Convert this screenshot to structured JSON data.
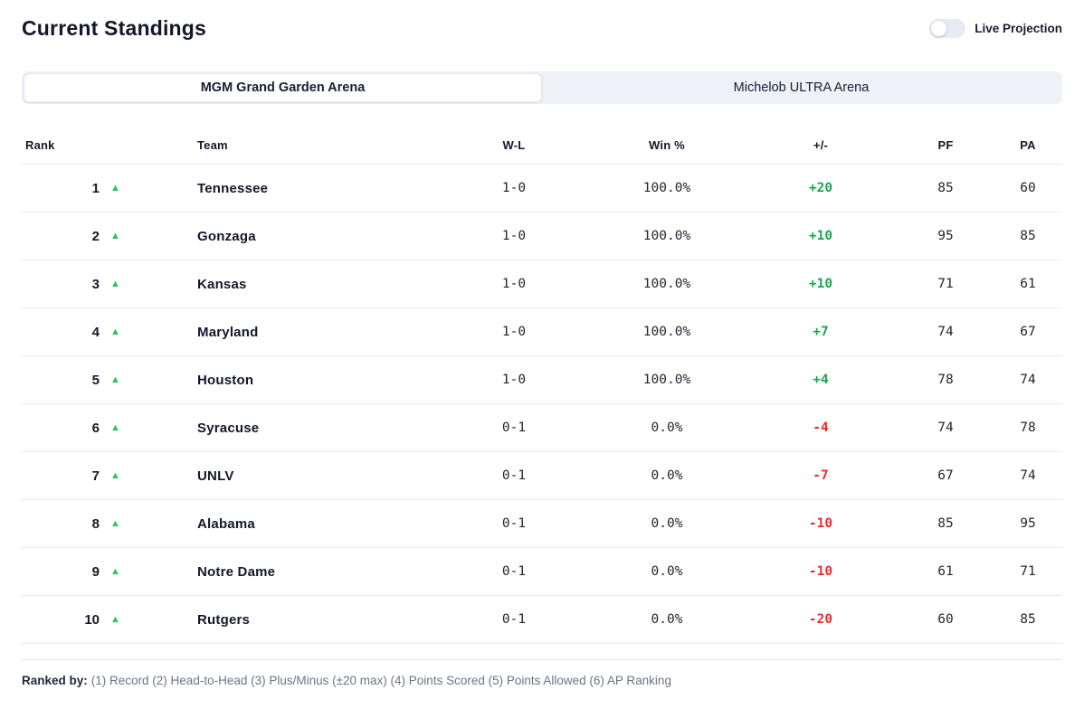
{
  "page": {
    "title": "Current Standings"
  },
  "toggle": {
    "label": "Live Projection",
    "state": "off"
  },
  "tabs": [
    {
      "label": "MGM Grand Garden Arena",
      "active": true
    },
    {
      "label": "Michelob ULTRA Arena",
      "active": false
    }
  ],
  "table": {
    "columns": [
      "Rank",
      "Team",
      "W-L",
      "Win %",
      "+/-",
      "PF",
      "PA"
    ],
    "rows": [
      {
        "rank": "1",
        "trend": "up",
        "team": "Tennessee",
        "record": "1-0",
        "win_pct": "100.0%",
        "plus_minus": "+20",
        "pf": "85",
        "pa": "60"
      },
      {
        "rank": "2",
        "trend": "up",
        "team": "Gonzaga",
        "record": "1-0",
        "win_pct": "100.0%",
        "plus_minus": "+10",
        "pf": "95",
        "pa": "85"
      },
      {
        "rank": "3",
        "trend": "up",
        "team": "Kansas",
        "record": "1-0",
        "win_pct": "100.0%",
        "plus_minus": "+10",
        "pf": "71",
        "pa": "61"
      },
      {
        "rank": "4",
        "trend": "up",
        "team": "Maryland",
        "record": "1-0",
        "win_pct": "100.0%",
        "plus_minus": "+7",
        "pf": "74",
        "pa": "67"
      },
      {
        "rank": "5",
        "trend": "up",
        "team": "Houston",
        "record": "1-0",
        "win_pct": "100.0%",
        "plus_minus": "+4",
        "pf": "78",
        "pa": "74"
      },
      {
        "rank": "6",
        "trend": "up",
        "team": "Syracuse",
        "record": "0-1",
        "win_pct": "0.0%",
        "plus_minus": "-4",
        "pf": "74",
        "pa": "78"
      },
      {
        "rank": "7",
        "trend": "up",
        "team": "UNLV",
        "record": "0-1",
        "win_pct": "0.0%",
        "plus_minus": "-7",
        "pf": "67",
        "pa": "74"
      },
      {
        "rank": "8",
        "trend": "up",
        "team": "Alabama",
        "record": "0-1",
        "win_pct": "0.0%",
        "plus_minus": "-10",
        "pf": "85",
        "pa": "95"
      },
      {
        "rank": "9",
        "trend": "up",
        "team": "Notre Dame",
        "record": "0-1",
        "win_pct": "0.0%",
        "plus_minus": "-10",
        "pf": "61",
        "pa": "71"
      },
      {
        "rank": "10",
        "trend": "up",
        "team": "Rutgers",
        "record": "0-1",
        "win_pct": "0.0%",
        "plus_minus": "-20",
        "pf": "60",
        "pa": "85"
      }
    ]
  },
  "footer": {
    "label": "Ranked by:",
    "text": "(1) Record (2) Head-to-Head (3) Plus/Minus (±20 max) (4) Points Scored (5) Points Allowed (6) AP Ranking"
  },
  "colors": {
    "positive": "#17a74f",
    "negative": "#ef2929",
    "trend_up": "#22c55e",
    "tab_bar_bg": "#eef1f6",
    "row_border": "#e8eaf0"
  }
}
